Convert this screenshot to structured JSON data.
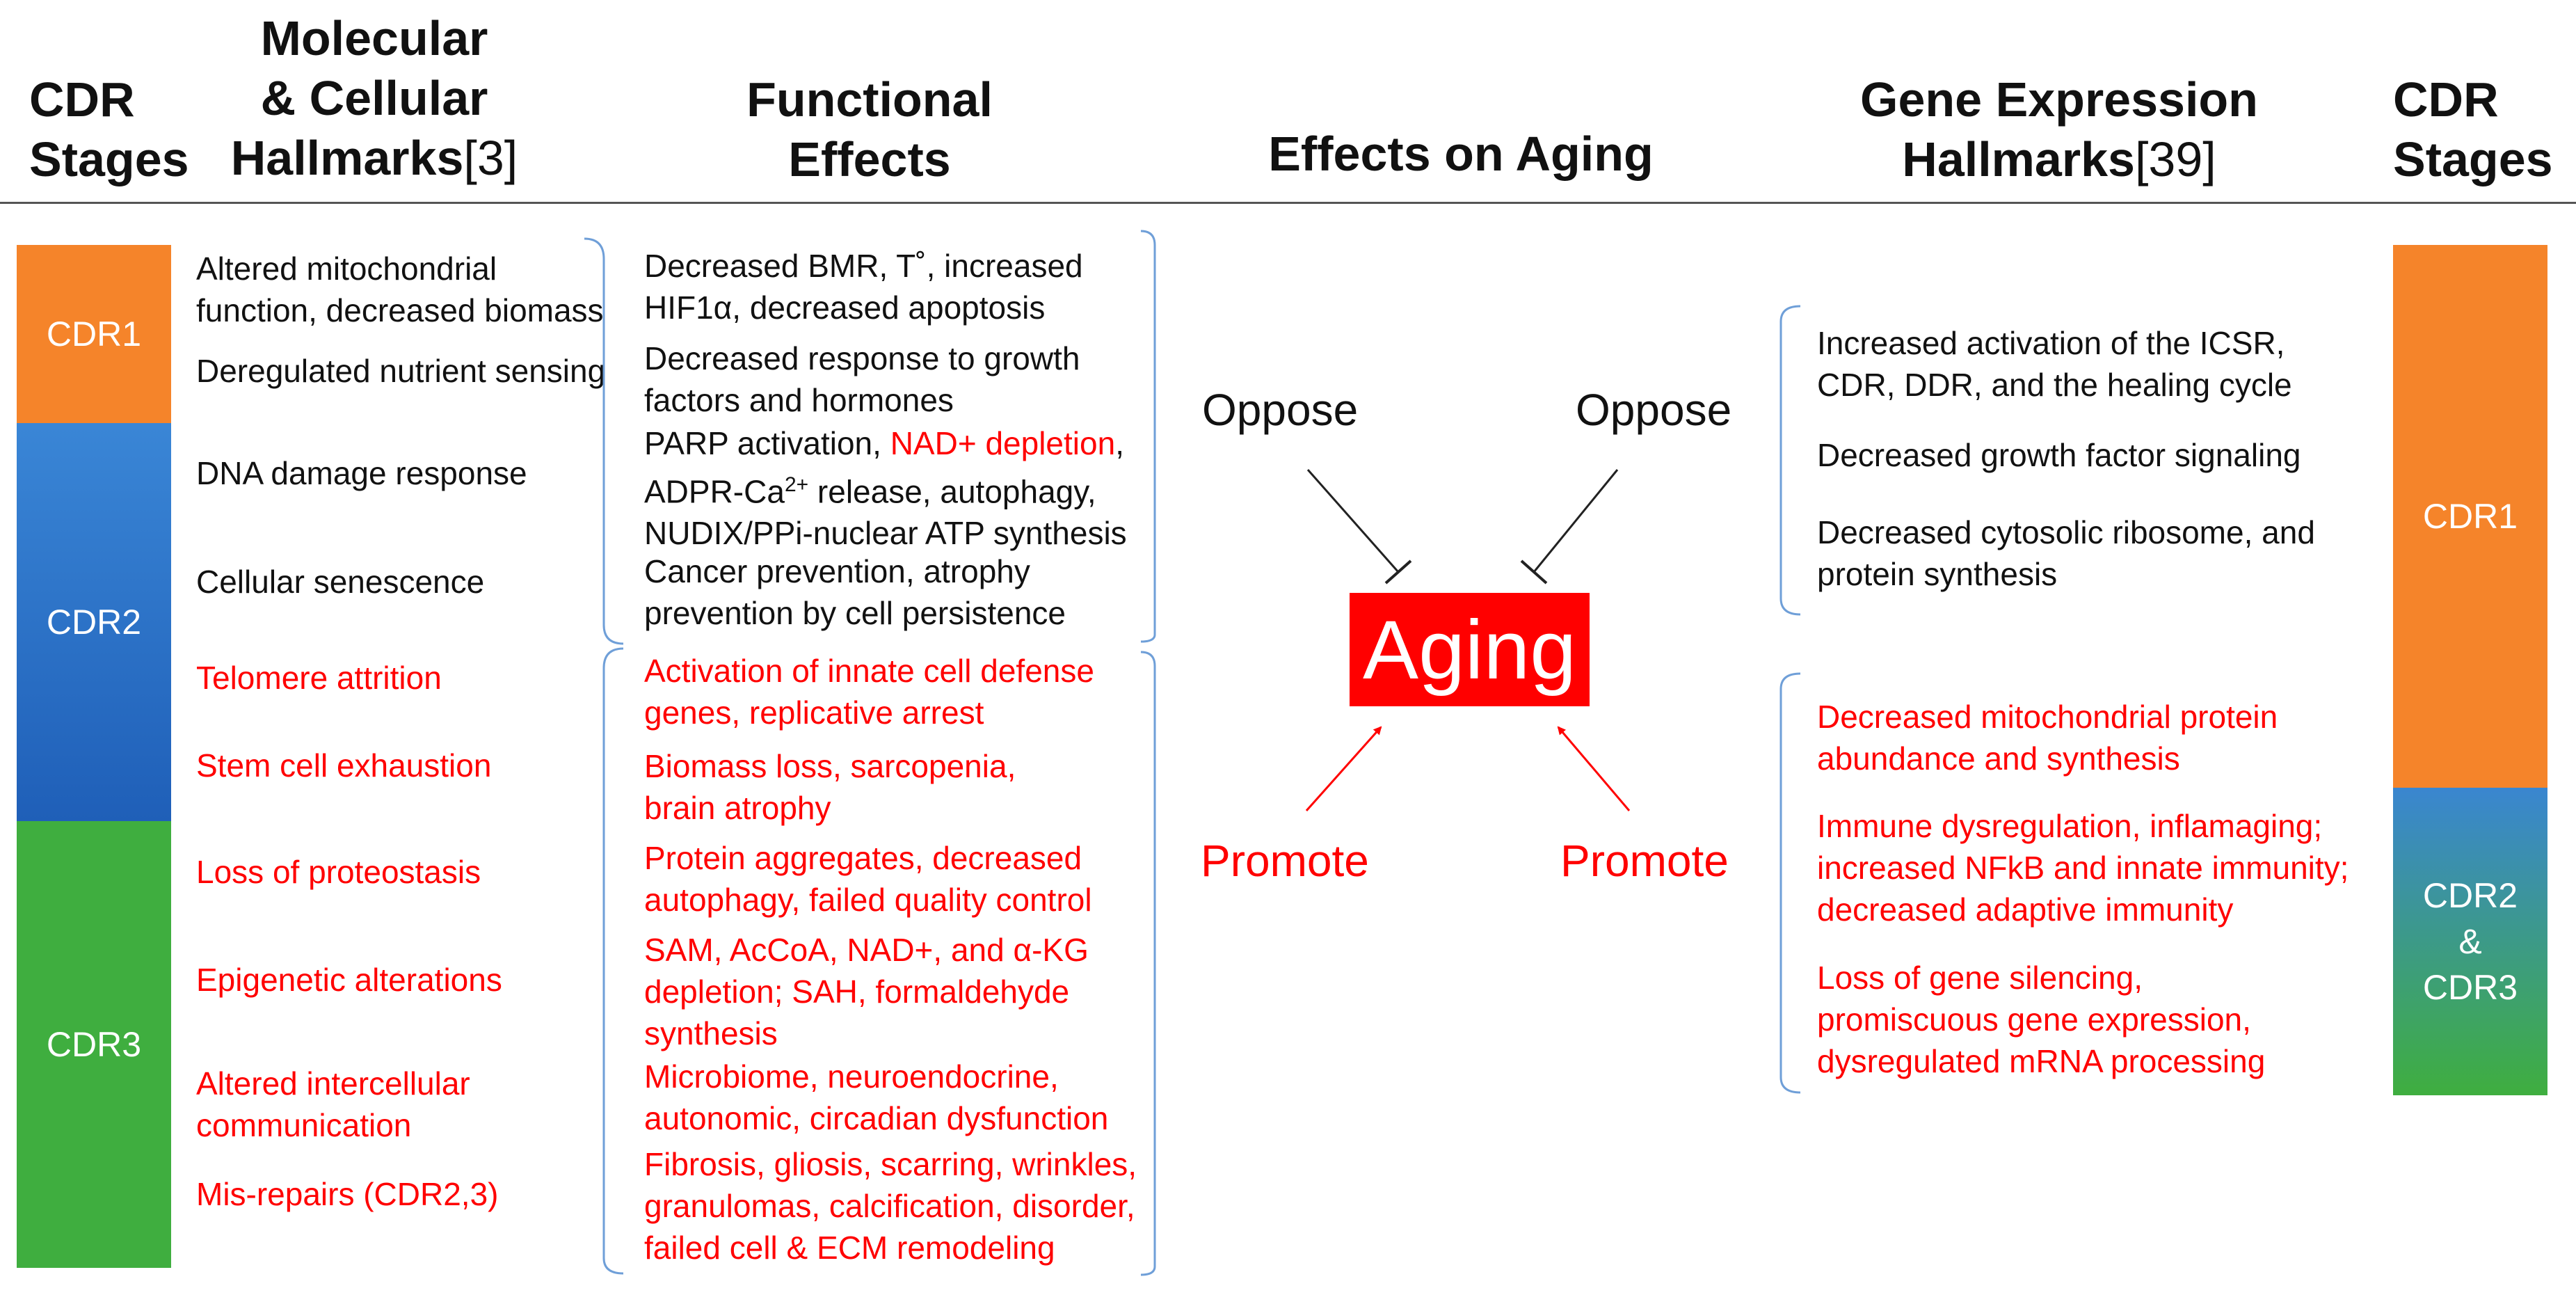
{
  "headers": {
    "cdr_stages_left": [
      "CDR",
      "Stages"
    ],
    "molecular": [
      "Molecular",
      "& Cellular",
      "Hallmarks"
    ],
    "molecular_ref": "[3]",
    "functional": [
      "Functional",
      "Effects"
    ],
    "effects": "Effects on Aging",
    "gene": [
      "Gene Expression",
      "Hallmarks"
    ],
    "gene_ref": "[39]",
    "cdr_stages_right": [
      "CDR",
      "Stages"
    ]
  },
  "left_bars": [
    {
      "label": "CDR1",
      "color": "#f5842a"
    },
    {
      "label": "CDR2",
      "color": "#2d72cf"
    },
    {
      "label": "CDR3",
      "color": "#3fae3f"
    }
  ],
  "right_bars": [
    {
      "label": "CDR1",
      "color": "#f5842a"
    },
    {
      "label_lines": [
        "CDR2",
        "&",
        "CDR3"
      ],
      "colors": [
        "#3a86d0",
        "#3fae3f"
      ]
    }
  ],
  "molecular_hallmarks": [
    {
      "lines": [
        "Altered mitochondrial",
        "function, decreased biomass"
      ],
      "color": "black"
    },
    {
      "lines": [
        "Deregulated nutrient sensing"
      ],
      "color": "black"
    },
    {
      "lines": [
        "DNA damage response"
      ],
      "color": "black"
    },
    {
      "lines": [
        "Cellular senescence"
      ],
      "color": "black"
    },
    {
      "lines": [
        "Telomere attrition"
      ],
      "color": "red"
    },
    {
      "lines": [
        "Stem cell exhaustion"
      ],
      "color": "red"
    },
    {
      "lines": [
        "Loss of proteostasis"
      ],
      "color": "red"
    },
    {
      "lines": [
        "Epigenetic alterations"
      ],
      "color": "red"
    },
    {
      "lines": [
        "Altered intercellular",
        "communication"
      ],
      "color": "red"
    },
    {
      "lines": [
        "Mis-repairs (CDR2,3)"
      ],
      "color": "red"
    }
  ],
  "functional_effects": [
    {
      "lines": [
        "Decreased BMR, T˚, increased",
        "HIF1α, decreased apoptosis"
      ],
      "color": "black"
    },
    {
      "lines": [
        "Decreased response to growth",
        "factors and hormones"
      ],
      "color": "black"
    },
    {
      "line1_pre": "PARP activation, ",
      "line1_red": "NAD+ depletion",
      "line1_post": ",",
      "line2_pre": "ADPR-Ca",
      "line2_sup": "2+",
      "line2_post": " release, autophagy,",
      "line3": "NUDIX/PPi-nuclear ATP synthesis"
    },
    {
      "lines": [
        "Cancer prevention, atrophy",
        "prevention by cell persistence"
      ],
      "color": "black"
    },
    {
      "lines": [
        "Activation of innate cell defense",
        "genes, replicative arrest"
      ],
      "color": "red"
    },
    {
      "lines": [
        "Biomass loss, sarcopenia,",
        "brain atrophy"
      ],
      "color": "red"
    },
    {
      "lines": [
        "Protein aggregates, decreased",
        "autophagy, failed quality control"
      ],
      "color": "red"
    },
    {
      "lines": [
        "SAM, AcCoA, NAD+, and α-KG",
        "depletion; SAH, formaldehyde",
        "synthesis"
      ],
      "color": "red"
    },
    {
      "lines": [
        "Microbiome, neuroendocrine,",
        "autonomic, circadian dysfunction"
      ],
      "color": "red"
    },
    {
      "lines": [
        "Fibrosis, gliosis, scarring, wrinkles,",
        "granulomas, calcification, disorder,",
        "failed cell & ECM remodeling"
      ],
      "color": "red"
    }
  ],
  "aging": {
    "label": "Aging",
    "oppose_left": "Oppose",
    "oppose_right": "Oppose",
    "promote_left": "Promote",
    "promote_right": "Promote"
  },
  "gene_hallmarks": [
    {
      "lines": [
        "Increased activation of the ICSR,",
        "CDR, DDR, and the healing cycle"
      ],
      "color": "black"
    },
    {
      "lines": [
        "Decreased growth factor signaling"
      ],
      "color": "black"
    },
    {
      "lines": [
        "Decreased cytosolic ribosome, and",
        "protein synthesis"
      ],
      "color": "black"
    },
    {
      "lines": [
        "Decreased mitochondrial protein",
        "abundance and synthesis"
      ],
      "color": "red"
    },
    {
      "lines": [
        "Immune dysregulation, inflamaging;",
        "increased NFkB and innate immunity;",
        "decreased adaptive immunity"
      ],
      "color": "red"
    },
    {
      "lines": [
        "Loss of gene silencing,",
        "promiscuous gene expression,",
        "dysregulated mRNA processing"
      ],
      "color": "red"
    }
  ],
  "colors": {
    "accent_red": "#ff0000",
    "bracket_blue": "#6f9fd8"
  }
}
